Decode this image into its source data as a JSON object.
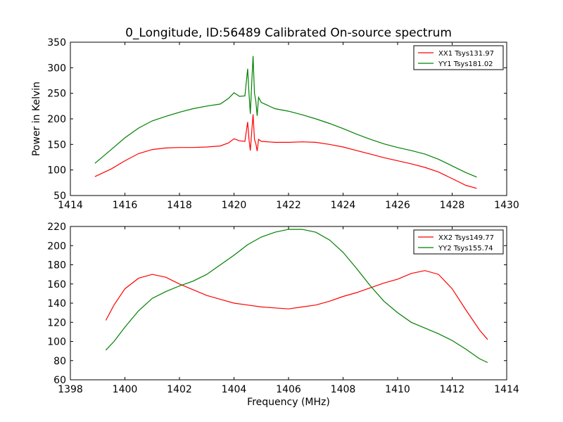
{
  "figure_title": "0_Longitude, ID:56489 Calibrated On-source spectrum",
  "chart_data": [
    {
      "type": "line",
      "ylabel": "Power in Kelvin",
      "xlabel": "",
      "xlim": [
        1414,
        1430
      ],
      "ylim": [
        50,
        350
      ],
      "xticks": [
        1414,
        1416,
        1418,
        1420,
        1422,
        1424,
        1426,
        1428,
        1430
      ],
      "yticks": [
        50,
        100,
        150,
        200,
        250,
        300,
        350
      ],
      "legend": "top-right",
      "grid": false,
      "series": [
        {
          "name": "XX1 Tsys131.97",
          "color": "#ff0000",
          "points": [
            [
              1414.9,
              87
            ],
            [
              1415.5,
              102
            ],
            [
              1416.0,
              118
            ],
            [
              1416.5,
              132
            ],
            [
              1417.0,
              140
            ],
            [
              1417.5,
              143
            ],
            [
              1418.0,
              144
            ],
            [
              1418.5,
              144
            ],
            [
              1419.0,
              145
            ],
            [
              1419.5,
              147
            ],
            [
              1419.8,
              153
            ],
            [
              1420.0,
              161
            ],
            [
              1420.2,
              157
            ],
            [
              1420.4,
              156
            ],
            [
              1420.5,
              194
            ],
            [
              1420.55,
              160
            ],
            [
              1420.6,
              138
            ],
            [
              1420.65,
              175
            ],
            [
              1420.7,
              209
            ],
            [
              1420.75,
              160
            ],
            [
              1420.8,
              152
            ],
            [
              1420.85,
              137
            ],
            [
              1420.9,
              160
            ],
            [
              1421.0,
              156
            ],
            [
              1421.5,
              154
            ],
            [
              1422.0,
              154
            ],
            [
              1422.5,
              155
            ],
            [
              1423.0,
              154
            ],
            [
              1423.5,
              150
            ],
            [
              1424.0,
              145
            ],
            [
              1424.5,
              138
            ],
            [
              1425.0,
              131
            ],
            [
              1425.5,
              124
            ],
            [
              1426.0,
              118
            ],
            [
              1426.5,
              112
            ],
            [
              1427.0,
              105
            ],
            [
              1427.5,
              96
            ],
            [
              1428.0,
              83
            ],
            [
              1428.5,
              70
            ],
            [
              1428.9,
              64
            ]
          ]
        },
        {
          "name": "YY1 Tsys181.02",
          "color": "#008000",
          "points": [
            [
              1414.9,
              113
            ],
            [
              1415.5,
              140
            ],
            [
              1416.0,
              163
            ],
            [
              1416.5,
              182
            ],
            [
              1417.0,
              196
            ],
            [
              1417.5,
              205
            ],
            [
              1418.0,
              213
            ],
            [
              1418.5,
              220
            ],
            [
              1419.0,
              225
            ],
            [
              1419.5,
              229
            ],
            [
              1419.8,
              240
            ],
            [
              1420.0,
              251
            ],
            [
              1420.2,
              244
            ],
            [
              1420.4,
              245
            ],
            [
              1420.5,
              298
            ],
            [
              1420.55,
              250
            ],
            [
              1420.6,
              210
            ],
            [
              1420.65,
              270
            ],
            [
              1420.7,
              323
            ],
            [
              1420.75,
              250
            ],
            [
              1420.8,
              235
            ],
            [
              1420.85,
              206
            ],
            [
              1420.9,
              242
            ],
            [
              1421.0,
              232
            ],
            [
              1421.5,
              220
            ],
            [
              1422.0,
              215
            ],
            [
              1422.5,
              208
            ],
            [
              1423.0,
              200
            ],
            [
              1423.5,
              191
            ],
            [
              1424.0,
              181
            ],
            [
              1424.5,
              170
            ],
            [
              1425.0,
              160
            ],
            [
              1425.5,
              151
            ],
            [
              1426.0,
              144
            ],
            [
              1426.5,
              138
            ],
            [
              1427.0,
              131
            ],
            [
              1427.5,
              121
            ],
            [
              1428.0,
              108
            ],
            [
              1428.5,
              95
            ],
            [
              1428.9,
              86
            ]
          ]
        }
      ]
    },
    {
      "type": "line",
      "ylabel": "",
      "xlabel": "Frequency (MHz)",
      "xlim": [
        1398,
        1414
      ],
      "ylim": [
        60,
        220
      ],
      "xticks": [
        1398,
        1400,
        1402,
        1404,
        1406,
        1408,
        1410,
        1412,
        1414
      ],
      "yticks": [
        60,
        80,
        100,
        120,
        140,
        160,
        180,
        200,
        220
      ],
      "legend": "top-right",
      "grid": false,
      "series": [
        {
          "name": "XX2 Tsys149.77",
          "color": "#ff0000",
          "points": [
            [
              1399.3,
              122
            ],
            [
              1399.6,
              138
            ],
            [
              1400.0,
              155
            ],
            [
              1400.5,
              166
            ],
            [
              1401.0,
              170
            ],
            [
              1401.5,
              167
            ],
            [
              1402.0,
              160
            ],
            [
              1402.5,
              154
            ],
            [
              1403.0,
              148
            ],
            [
              1403.5,
              144
            ],
            [
              1404.0,
              140
            ],
            [
              1404.5,
              138
            ],
            [
              1405.0,
              136
            ],
            [
              1405.5,
              135
            ],
            [
              1406.0,
              134
            ],
            [
              1406.5,
              136
            ],
            [
              1407.0,
              138
            ],
            [
              1407.5,
              142
            ],
            [
              1408.0,
              147
            ],
            [
              1408.5,
              151
            ],
            [
              1409.0,
              156
            ],
            [
              1409.5,
              161
            ],
            [
              1410.0,
              165
            ],
            [
              1410.5,
              171
            ],
            [
              1411.0,
              174
            ],
            [
              1411.5,
              170
            ],
            [
              1412.0,
              155
            ],
            [
              1412.5,
              133
            ],
            [
              1413.0,
              112
            ],
            [
              1413.3,
              102
            ]
          ]
        },
        {
          "name": "YY2 Tsys155.74",
          "color": "#008000",
          "points": [
            [
              1399.3,
              91
            ],
            [
              1399.6,
              100
            ],
            [
              1400.0,
              115
            ],
            [
              1400.5,
              132
            ],
            [
              1401.0,
              145
            ],
            [
              1401.5,
              152
            ],
            [
              1402.0,
              158
            ],
            [
              1402.5,
              163
            ],
            [
              1403.0,
              170
            ],
            [
              1403.5,
              180
            ],
            [
              1404.0,
              190
            ],
            [
              1404.5,
              201
            ],
            [
              1405.0,
              209
            ],
            [
              1405.5,
              214
            ],
            [
              1406.0,
              217
            ],
            [
              1406.5,
              217
            ],
            [
              1407.0,
              214
            ],
            [
              1407.5,
              206
            ],
            [
              1408.0,
              193
            ],
            [
              1408.5,
              176
            ],
            [
              1409.0,
              158
            ],
            [
              1409.5,
              142
            ],
            [
              1410.0,
              130
            ],
            [
              1410.5,
              120
            ],
            [
              1411.0,
              114
            ],
            [
              1411.5,
              108
            ],
            [
              1412.0,
              101
            ],
            [
              1412.5,
              92
            ],
            [
              1413.0,
              82
            ],
            [
              1413.3,
              78
            ]
          ]
        }
      ]
    }
  ]
}
